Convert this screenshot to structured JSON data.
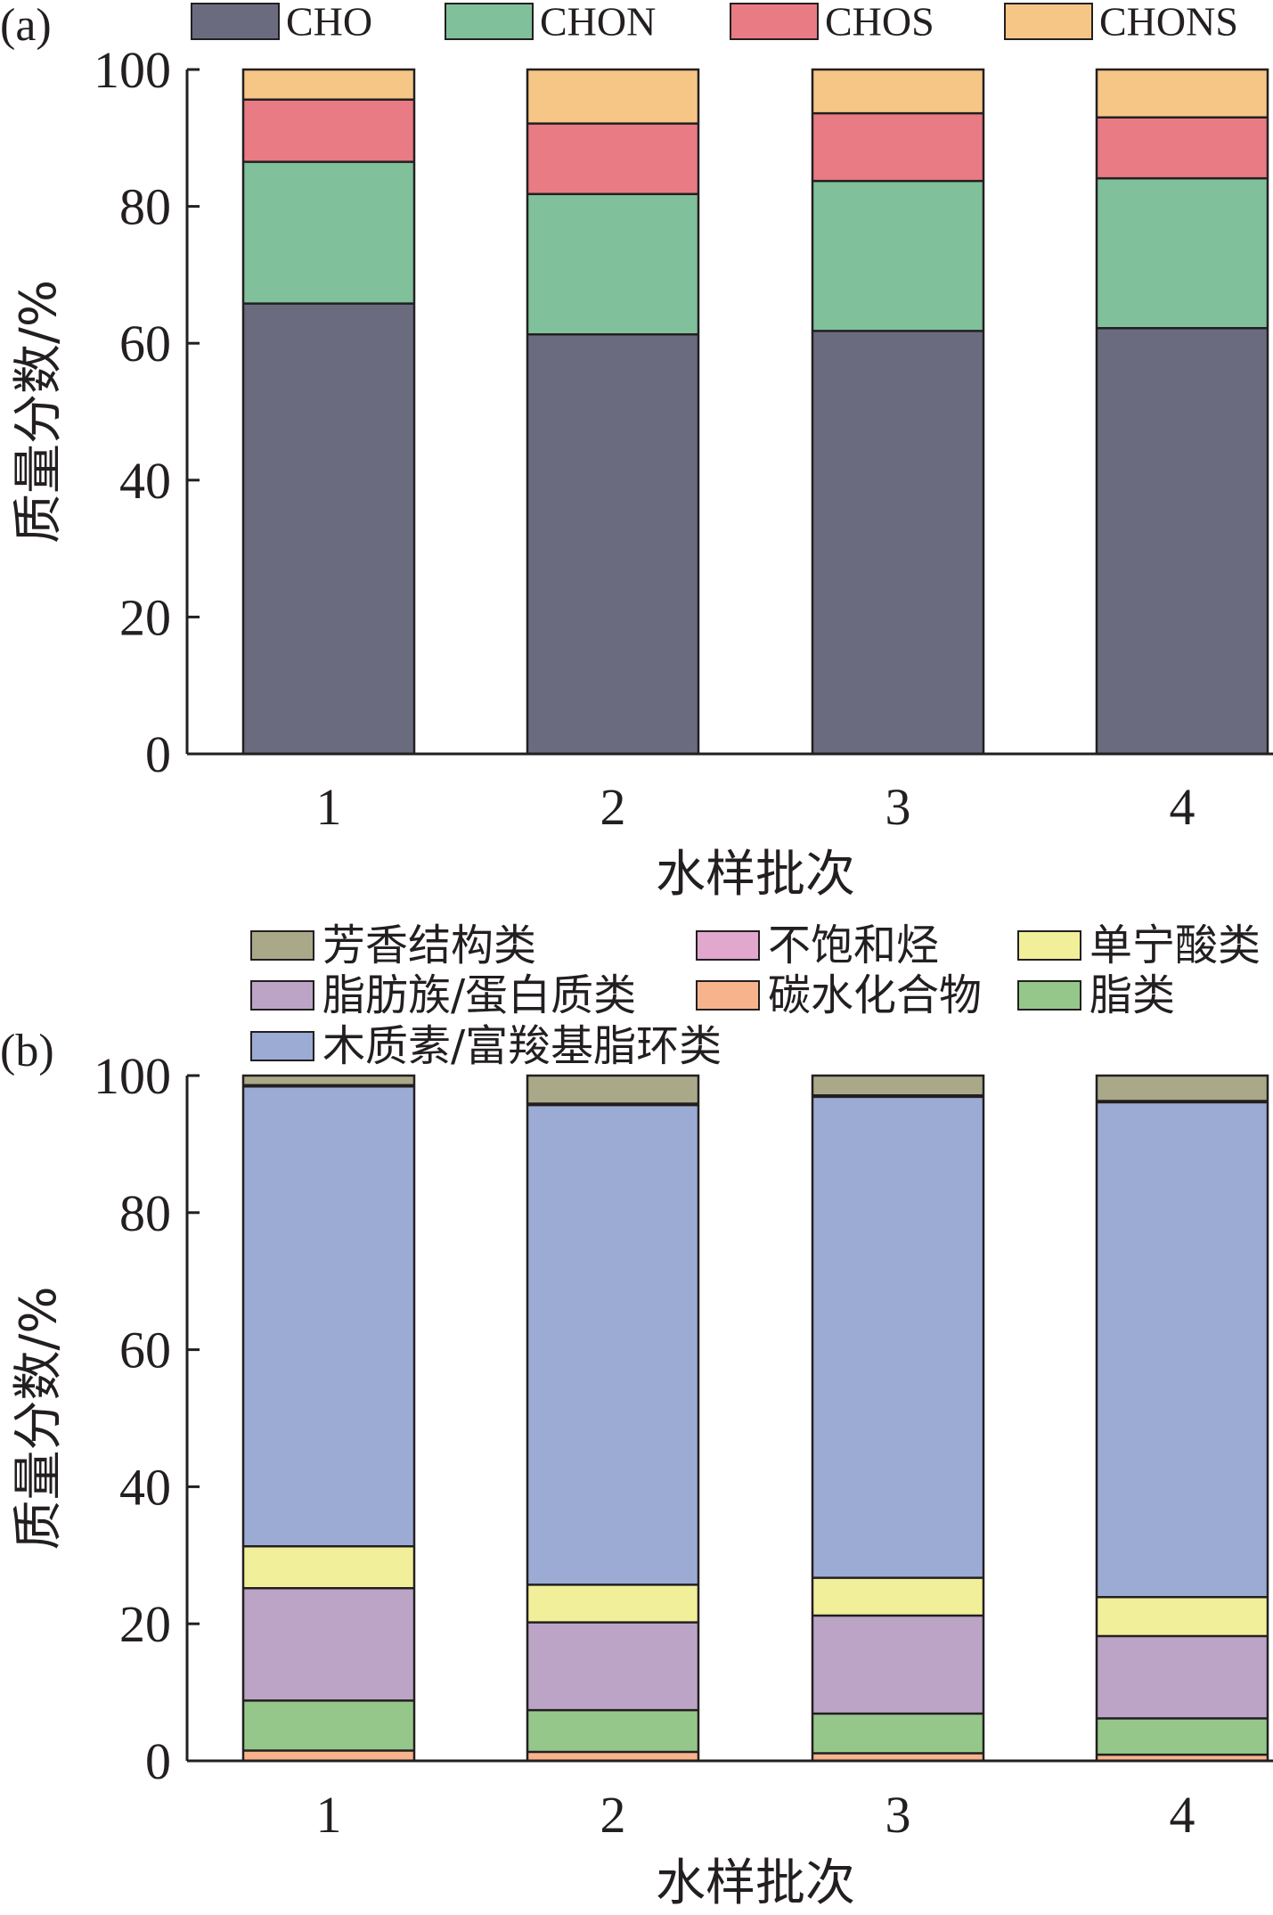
{
  "chart_data": [
    {
      "type": "bar",
      "stacked": true,
      "panel_label": "(a)",
      "categories": [
        "1",
        "2",
        "3",
        "4"
      ],
      "ylabel": "质量分数/%",
      "xlabel": "水样批次",
      "ylim": [
        0,
        100
      ],
      "yticks": [
        "0",
        "20",
        "40",
        "60",
        "80",
        "100"
      ],
      "legend_placement": "top",
      "series": [
        {
          "name": "CHO",
          "color": "#6b6b80",
          "values": [
            65.8,
            61.3,
            61.8,
            62.2
          ]
        },
        {
          "name": "CHON",
          "color": "#80c09b",
          "values": [
            20.7,
            20.5,
            21.9,
            21.9
          ]
        },
        {
          "name": "CHOS",
          "color": "#e87b84",
          "values": [
            9.1,
            10.3,
            9.9,
            8.9
          ]
        },
        {
          "name": "CHONS",
          "color": "#f6c686",
          "values": [
            4.4,
            7.9,
            6.4,
            7.0
          ]
        }
      ]
    },
    {
      "type": "bar",
      "stacked": true,
      "panel_label": "(b)",
      "categories": [
        "1",
        "2",
        "3",
        "4"
      ],
      "ylabel": "质量分数/%",
      "xlabel": "水样批次",
      "ylim": [
        0,
        100
      ],
      "yticks": [
        "0",
        "20",
        "40",
        "60",
        "80",
        "100"
      ],
      "legend_placement": "top",
      "series": [
        {
          "name": "碳水化合物",
          "color": "#f7b48c",
          "values": [
            1.5,
            1.3,
            1.1,
            0.9
          ]
        },
        {
          "name": "脂类",
          "color": "#95c78b",
          "values": [
            7.3,
            6.1,
            5.8,
            5.3
          ]
        },
        {
          "name": "脂肪族/蛋白质类",
          "color": "#bba4c6",
          "values": [
            16.4,
            12.8,
            14.3,
            12.0
          ]
        },
        {
          "name": "单宁酸类",
          "color": "#f1ef99",
          "values": [
            6.1,
            5.5,
            5.5,
            5.7
          ]
        },
        {
          "name": "木质素/富羧基脂环类",
          "color": "#9cabd4",
          "values": [
            67.1,
            70.0,
            70.2,
            72.2
          ]
        },
        {
          "name": "不饱和烃",
          "color": "#e2a7cd",
          "values": [
            0.2,
            0.2,
            0.2,
            0.2
          ]
        },
        {
          "name": "芳香结构类",
          "color": "#a9a98a",
          "values": [
            1.4,
            4.1,
            2.9,
            3.7
          ]
        }
      ],
      "legend_order": [
        "芳香结构类",
        "不饱和烃",
        "单宁酸类",
        "脂肪族/蛋白质类",
        "碳水化合物",
        "脂类",
        "木质素/富羧基脂环类"
      ]
    }
  ]
}
